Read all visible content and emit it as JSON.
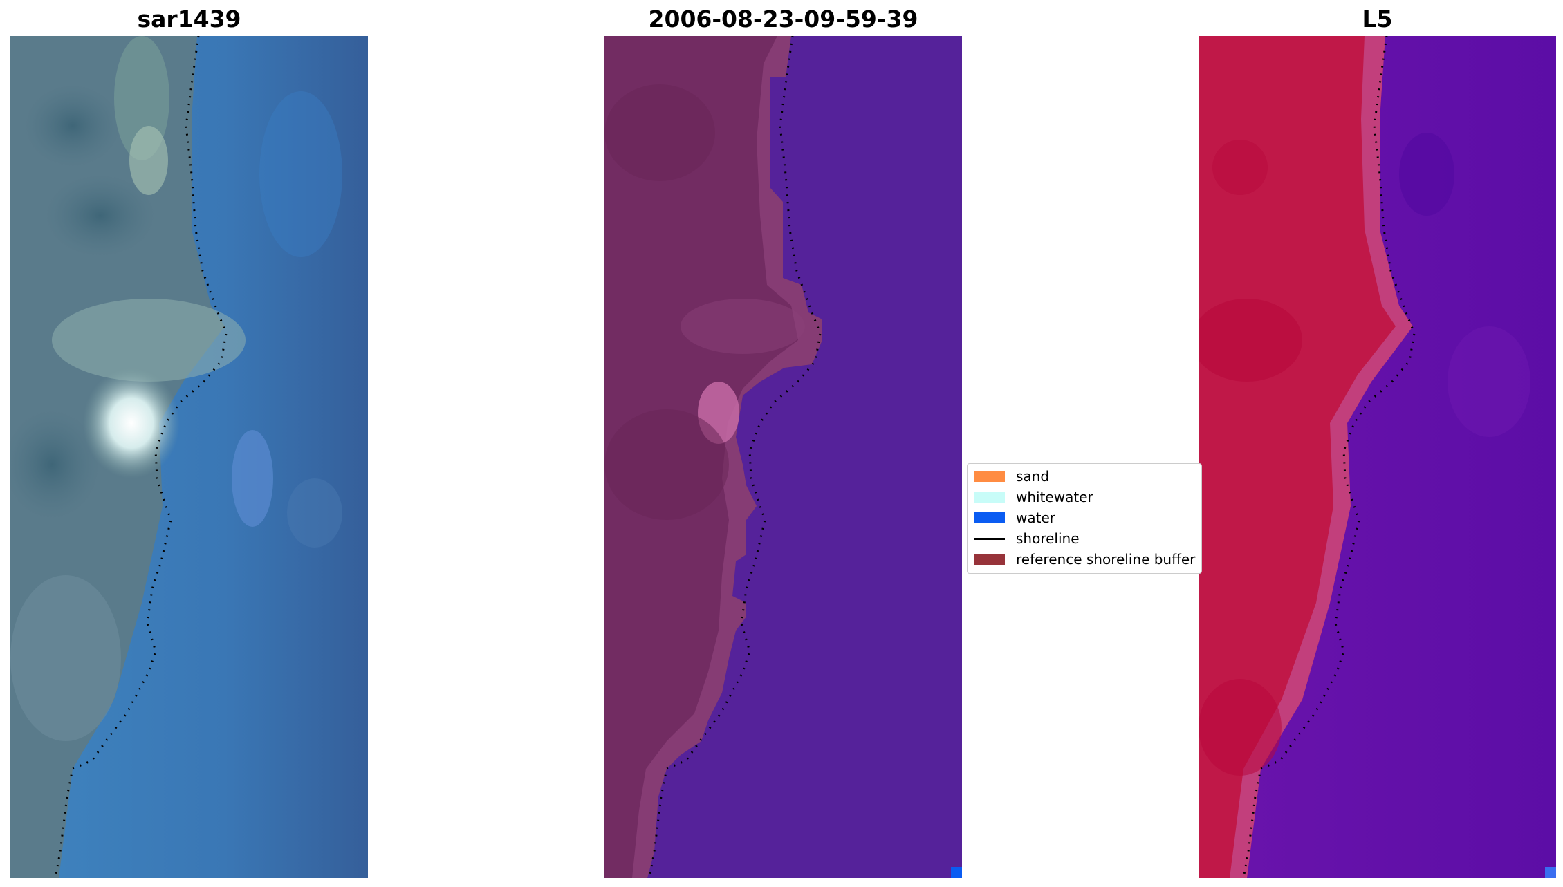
{
  "panels": [
    {
      "title": "sar1439"
    },
    {
      "title": "2006-08-23-09-59-39"
    },
    {
      "title": "L5"
    }
  ],
  "legend": {
    "items": [
      {
        "label": "sand",
        "kind": "patch",
        "color": "#ff8c42"
      },
      {
        "label": "whitewater",
        "kind": "patch",
        "color": "#c8fcf8"
      },
      {
        "label": "water",
        "kind": "patch",
        "color": "#0a5cf2"
      },
      {
        "label": "shoreline",
        "kind": "line",
        "color": "#000000"
      },
      {
        "label": "reference shoreline buffer",
        "kind": "patch",
        "color": "#97333a"
      }
    ]
  },
  "colors": {
    "rgb_water": "#3c73b6",
    "rgb_land": "#56788a",
    "classified_land": "#722c62",
    "classified_water": "#55229a",
    "index_land": "#c01848",
    "index_water": "#5c0da6",
    "shoreline": "#000000"
  }
}
